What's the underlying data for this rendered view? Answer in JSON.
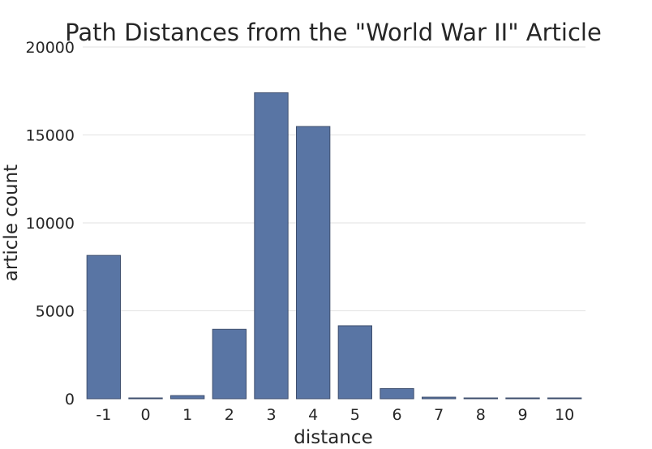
{
  "chart_data": {
    "type": "bar",
    "title": "Path Distances from the \"World War II\" Article",
    "xlabel": "distance",
    "ylabel": "article count",
    "categories": [
      "-1",
      "0",
      "1",
      "2",
      "3",
      "4",
      "5",
      "6",
      "7",
      "8",
      "9",
      "10"
    ],
    "values": [
      8150,
      20,
      180,
      3950,
      17400,
      15480,
      4150,
      580,
      90,
      40,
      10,
      15
    ],
    "ylim": [
      0,
      20000
    ],
    "yticks": [
      0,
      5000,
      10000,
      15000,
      20000
    ],
    "grid": "horizontal",
    "bar_color": "#5975a4"
  }
}
